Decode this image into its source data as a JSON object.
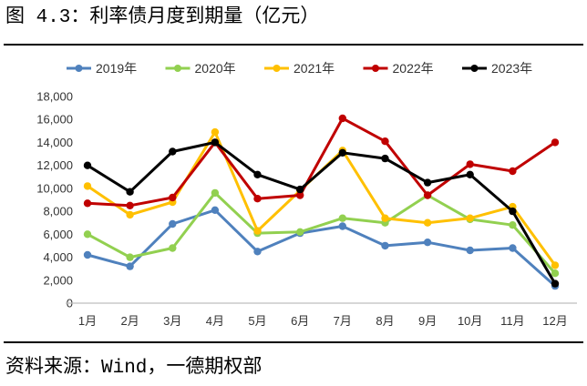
{
  "title": "图 4.3：利率债月度到期量（亿元）",
  "source": "资料来源：Wind，一德期权部",
  "chart_data": {
    "type": "line",
    "categories": [
      "1月",
      "2月",
      "3月",
      "4月",
      "5月",
      "6月",
      "7月",
      "8月",
      "9月",
      "10月",
      "11月",
      "12月"
    ],
    "series": [
      {
        "name": "2019年",
        "color": "#4F81BD",
        "values": [
          4200,
          3200,
          6900,
          8100,
          4500,
          6100,
          6700,
          5000,
          5300,
          4600,
          4800,
          1500
        ]
      },
      {
        "name": "2020年",
        "color": "#92D050",
        "values": [
          6000,
          4000,
          4800,
          9600,
          6100,
          6200,
          7400,
          7000,
          9400,
          7300,
          6800,
          2600
        ]
      },
      {
        "name": "2021年",
        "color": "#FFC000",
        "values": [
          10200,
          7700,
          8800,
          14900,
          6300,
          9800,
          13300,
          7400,
          7000,
          7400,
          8400,
          3300
        ]
      },
      {
        "name": "2022年",
        "color": "#C00000",
        "values": [
          8700,
          8500,
          9200,
          14000,
          9100,
          9400,
          16100,
          14100,
          9400,
          12100,
          11500,
          14000
        ]
      },
      {
        "name": "2023年",
        "color": "#000000",
        "values": [
          12000,
          9700,
          13200,
          14000,
          11200,
          9900,
          13100,
          12600,
          10500,
          11200,
          8000,
          1700
        ]
      }
    ],
    "ytick_labels": [
      "0",
      "2,000",
      "4,000",
      "6,000",
      "8,000",
      "10,000",
      "12,000",
      "14,000",
      "16,000",
      "18,000"
    ],
    "ylim": [
      0,
      18000
    ],
    "legend": "top",
    "grid": false
  }
}
